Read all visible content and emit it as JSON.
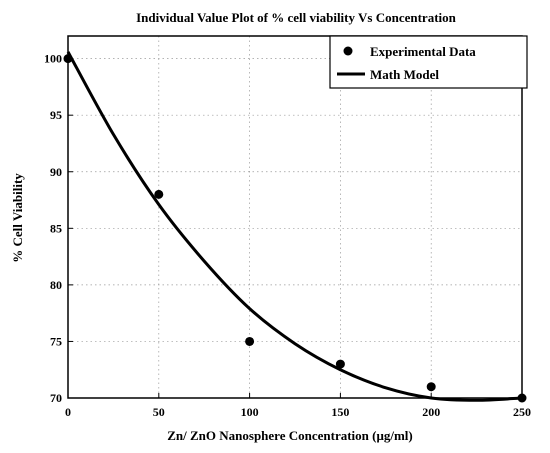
{
  "chart_data": {
    "type": "scatter",
    "title": "Individual Value Plot of % cell viability Vs Concentration",
    "xlabel": "Zn/ ZnO   Nanosphere  Concentration (μg/ml)",
    "ylabel": "% Cell Viability",
    "xlim": [
      0,
      250
    ],
    "ylim": [
      70,
      102
    ],
    "grid": true,
    "legend_position": "top-right",
    "x_ticks": [
      "0",
      "50",
      "100",
      "150",
      "200",
      "250"
    ],
    "y_ticks": [
      "70",
      "75",
      "80",
      "85",
      "90",
      "95",
      "100"
    ],
    "series": [
      {
        "name": "Experimental Data",
        "kind": "scatter",
        "color": "#000000",
        "x": [
          0,
          50,
          100,
          150,
          200,
          250
        ],
        "y": [
          100,
          88,
          75,
          73,
          71,
          70
        ]
      },
      {
        "name": "Math Model",
        "kind": "line",
        "color": "#000000",
        "x": [
          0,
          25,
          50,
          75,
          100,
          125,
          150,
          175,
          200,
          225,
          250
        ],
        "y": [
          100.6,
          93.3,
          87.1,
          82.1,
          77.9,
          74.8,
          72.5,
          70.9,
          70.0,
          69.8,
          70.0
        ]
      }
    ]
  }
}
